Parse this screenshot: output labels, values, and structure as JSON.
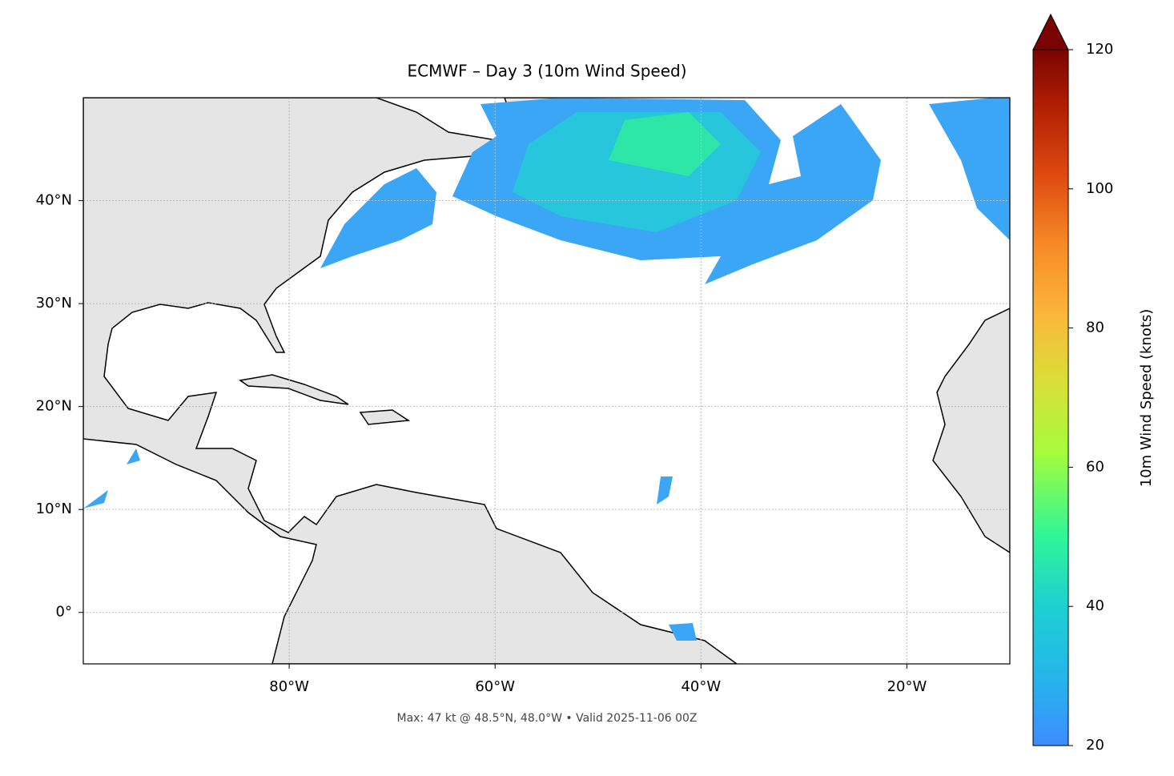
{
  "map": {
    "title": "ECMWF – Day 3 (10m Wind Speed)",
    "footer": "Max: 47 kt @ 48.5°N, 48.0°W • Valid 2025-11-06 00Z",
    "xlim": [
      -100,
      -10
    ],
    "ylim": [
      -5,
      50
    ],
    "grid": true,
    "xticks": [
      {
        "value": -80,
        "label": "80°W"
      },
      {
        "value": -60,
        "label": "60°W"
      },
      {
        "value": -40,
        "label": "40°W"
      },
      {
        "value": -20,
        "label": "20°W"
      }
    ],
    "yticks": [
      {
        "value": 0,
        "label": "0°"
      },
      {
        "value": 10,
        "label": "10°N"
      },
      {
        "value": 20,
        "label": "20°N"
      },
      {
        "value": 30,
        "label": "30°N"
      },
      {
        "value": 40,
        "label": "40°N"
      }
    ],
    "colorbar": {
      "label": "10m Wind Speed (knots)",
      "lim": [
        20,
        120
      ],
      "ticks": [
        20,
        40,
        60,
        80,
        100,
        120
      ]
    }
  }
}
